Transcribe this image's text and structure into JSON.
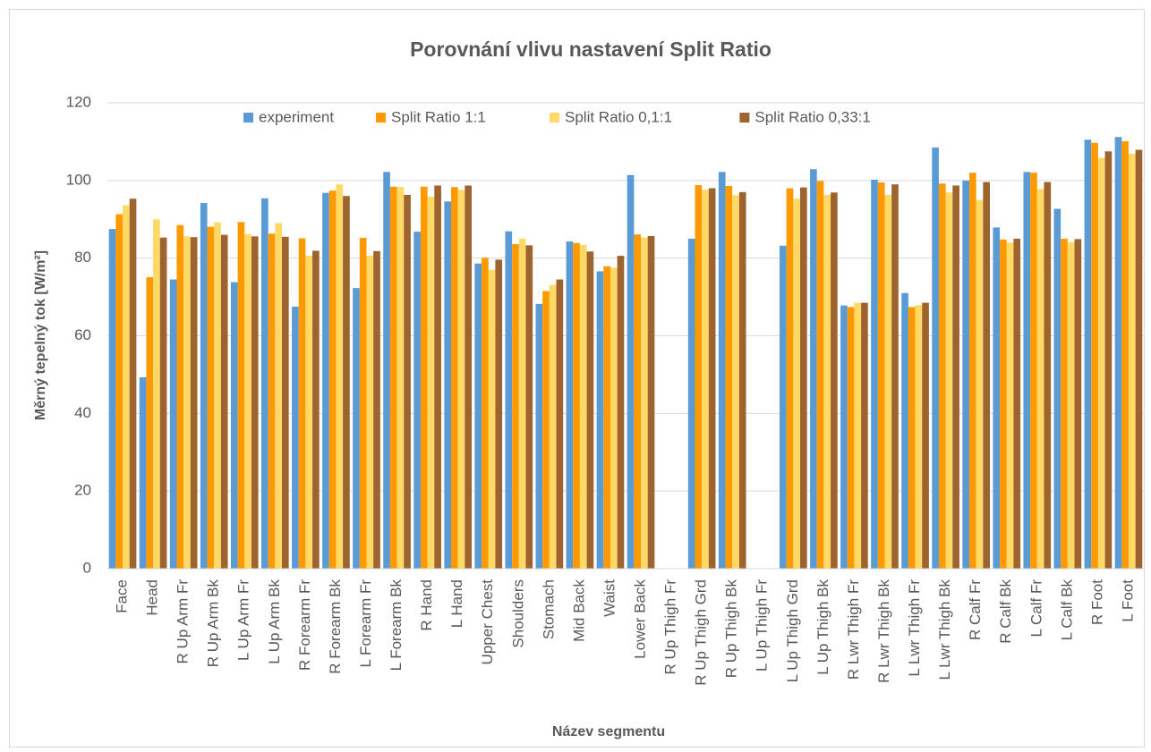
{
  "chart_data": {
    "type": "bar",
    "title": "Porovnání vlivu nastavení Split Ratio",
    "x_label": "Název segmentu",
    "y_label": "Měrný tepelný tok [W/m²]",
    "categories": [
      "Face",
      "Head",
      "R Up Arm Fr",
      "R Up Arm Bk",
      "L Up Arm Fr",
      "L Up Arm Bk",
      "R Forearm Fr",
      "R Forearm Bk",
      "L Forearm Fr",
      "L Forearm Bk",
      "R Hand",
      "L Hand",
      "Upper Chest",
      "Shoulders",
      "Stomach",
      "Mid Back",
      "Waist",
      "Lower Back",
      "R Up Thigh Fr",
      "R Up Thigh Grd",
      "R Up Thigh Bk",
      "L Up Thigh Fr",
      "L Up Thigh Grd",
      "L Up Thigh Bk",
      "R Lwr Thigh Fr",
      "R Lwr Thigh Bk",
      "L Lwr Thigh Fr",
      "L Lwr Thigh Bk",
      "R Calf Fr",
      "R Calf Bk",
      "L Calf Fr",
      "L Calf Bk",
      "R Foot",
      "L Foot"
    ],
    "series": [
      {
        "name": "experiment",
        "color": "#5b9bd5",
        "values": [
          87.5,
          49.3,
          74.5,
          94.2,
          73.8,
          95.4,
          67.5,
          96.8,
          72.3,
          102.2,
          86.8,
          94.6,
          78.6,
          86.9,
          68.2,
          84.3,
          76.6,
          101.4,
          null,
          85.0,
          102.2,
          null,
          83.2,
          102.9,
          67.8,
          100.2,
          71.0,
          108.5,
          100.0,
          87.9,
          102.2,
          92.7,
          110.5,
          111.2
        ]
      },
      {
        "name": "Split Ratio 1:1",
        "color": "#ff9900",
        "values": [
          91.3,
          75.1,
          88.5,
          88.1,
          89.3,
          86.3,
          85.1,
          97.4,
          85.2,
          98.4,
          98.4,
          98.3,
          80.1,
          83.6,
          71.5,
          83.9,
          77.9,
          86.1,
          null,
          98.8,
          98.6,
          null,
          98.0,
          99.9,
          67.4,
          99.5,
          67.4,
          99.2,
          102.0,
          84.8,
          102.0,
          85.0,
          109.7,
          110.1
        ]
      },
      {
        "name": "Split Ratio 0,1:1",
        "color": "#ffd966",
        "values": [
          93.6,
          90.0,
          85.6,
          89.2,
          86.2,
          89.0,
          80.6,
          99.0,
          80.6,
          98.3,
          95.8,
          97.6,
          77.0,
          85.0,
          73.1,
          83.4,
          77.5,
          85.3,
          null,
          97.6,
          96.2,
          null,
          95.3,
          96.3,
          68.5,
          96.3,
          67.9,
          96.9,
          95.0,
          84.0,
          97.8,
          84.1,
          105.8,
          106.9
        ]
      },
      {
        "name": "Split Ratio 0,33:1",
        "color": "#9e642f",
        "values": [
          95.3,
          85.3,
          85.4,
          86.0,
          85.6,
          85.5,
          81.9,
          96.0,
          81.8,
          96.3,
          98.7,
          98.7,
          79.6,
          83.3,
          74.5,
          81.7,
          80.6,
          85.7,
          null,
          98.0,
          97.0,
          null,
          98.2,
          96.9,
          68.5,
          99.0,
          68.5,
          98.7,
          99.6,
          85.0,
          99.6,
          84.9,
          107.5,
          107.9
        ]
      }
    ],
    "ylim": [
      0,
      120
    ],
    "yticks": [
      0,
      20,
      40,
      60,
      80,
      100,
      120
    ],
    "grid": true,
    "legend": "top"
  }
}
